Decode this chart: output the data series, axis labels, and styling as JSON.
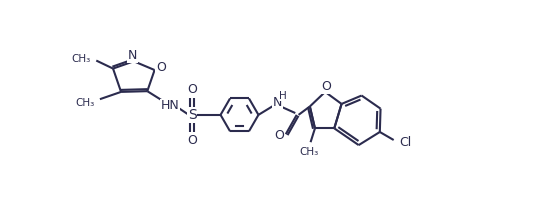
{
  "bg_color": "#ffffff",
  "line_color": "#2b2b4e",
  "bond_lw": 1.5,
  "fs": 9,
  "fig_width": 5.42,
  "fig_height": 2.13,
  "dpi": 100,
  "xlim": [
    0,
    11
  ],
  "ylim": [
    0,
    4.5
  ]
}
